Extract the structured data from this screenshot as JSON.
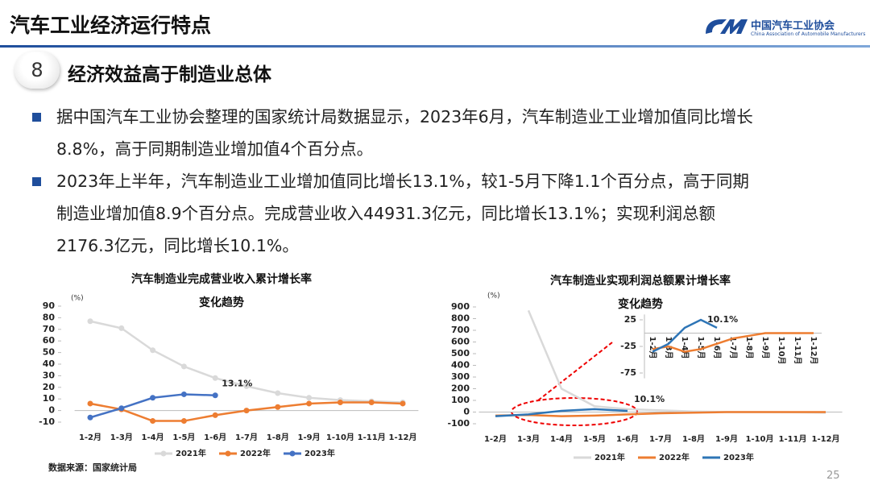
{
  "header": {
    "title": "汽车工业经济运行特点",
    "logo_name": "中国汽车工业协会",
    "logo_subtitle": "China Association of Automobile Manufacturers"
  },
  "section": {
    "number": "8",
    "title": "经济效益高于制造业总体"
  },
  "bullets": [
    [
      "据中国汽车工业协会整理的国家统计局数据显示，2023年6月，汽车制造业工业增加值同比增长",
      "8.8%，高于同期制造业增加值4个百分点。"
    ],
    [
      "2023年上半年，汽车制造业工业增加值同比增长13.1%，较1-5月下降1.1个百分点，高于同期",
      "制造业增加值8.9个百分点。完成营业收入44931.3亿元，同比增长13.1%；实现利润总额",
      "2176.3亿元，同比增长10.1%。"
    ]
  ],
  "source": "数据来源：国家统计局",
  "page_number": "25",
  "chart_data": [
    {
      "type": "line",
      "title": [
        "汽车制造业完成营业收入累计增长率",
        "变化趋势"
      ],
      "y_unit": "(%)",
      "markers": true,
      "categories": [
        "1-2月",
        "1-3月",
        "1-4月",
        "1-5月",
        "1-6月",
        "1-7月",
        "1-8月",
        "1-9月",
        "1-10月",
        "1-11月",
        "1-12月"
      ],
      "ylim": [
        -10,
        90
      ],
      "yticks": [
        -10,
        0,
        10,
        20,
        30,
        40,
        50,
        60,
        70,
        80,
        90
      ],
      "series": [
        {
          "name": "2021年",
          "color": "#d9d9d9",
          "values": [
            77,
            71,
            52,
            38,
            28,
            21,
            15,
            11,
            9,
            8,
            7
          ]
        },
        {
          "name": "2022年",
          "color": "#ed7d31",
          "values": [
            6,
            1,
            -9,
            -9,
            -4,
            0,
            3,
            6,
            7,
            7,
            6
          ]
        },
        {
          "name": "2023年",
          "color": "#4472c4",
          "values": [
            -6,
            2,
            11,
            14,
            13.1,
            null,
            null,
            null,
            null,
            null,
            null
          ],
          "value_labels": [
            null,
            null,
            null,
            null,
            "13.1%",
            null,
            null,
            null,
            null,
            null,
            null
          ]
        }
      ]
    },
    {
      "type": "line",
      "title": [
        "汽车制造业实现利润总额累计增长率",
        "变化趋势"
      ],
      "y_unit": "(%)",
      "markers": false,
      "categories": [
        "1-2月",
        "1-3月",
        "1-4月",
        "1-5月",
        "1-6月",
        "1-7月",
        "1-8月",
        "1-9月",
        "1-10月",
        "1-11月",
        "1-12月"
      ],
      "ylim": [
        -100,
        900
      ],
      "yticks": [
        -100,
        0,
        100,
        200,
        300,
        400,
        500,
        600,
        700,
        800,
        900
      ],
      "series": [
        {
          "name": "2021年",
          "color": "#d9d9d9",
          "values": [
            null,
            870,
            200,
            50,
            25,
            15,
            5,
            0,
            0,
            -2,
            -5
          ]
        },
        {
          "name": "2022年",
          "color": "#ed7d31",
          "values": [
            -30,
            -25,
            -35,
            -30,
            -20,
            -10,
            -5,
            0,
            0,
            0,
            0
          ]
        },
        {
          "name": "2023年",
          "color": "#2e75b6",
          "values": [
            -35,
            -20,
            10,
            25,
            10.1,
            null,
            null,
            null,
            null,
            null,
            null
          ],
          "value_labels": [
            null,
            null,
            null,
            null,
            "10.1%",
            null,
            null,
            null,
            null,
            null,
            null
          ]
        }
      ]
    },
    {
      "type": "line",
      "markers": false,
      "categories": [
        "1-2月",
        "1-3月",
        "1-4月",
        "1-5月",
        "1-6月",
        "1-7月",
        "1-8月",
        "1-9月",
        "1-10月",
        "1-11月",
        "1-12月"
      ],
      "ylim": [
        -85,
        35
      ],
      "yticks": [
        -75,
        -25,
        25
      ],
      "series": [
        {
          "color": "#ed7d31",
          "values": [
            -30,
            -25,
            -35,
            -30,
            -20,
            -10,
            -5,
            0,
            0,
            0,
            0
          ]
        },
        {
          "color": "#2e75b6",
          "values": [
            -35,
            -20,
            10,
            25,
            10.1,
            null,
            null,
            null,
            null,
            null,
            null
          ],
          "value_labels": [
            null,
            null,
            null,
            null,
            "10.1%",
            null,
            null,
            null,
            null,
            null,
            null
          ]
        }
      ]
    }
  ]
}
